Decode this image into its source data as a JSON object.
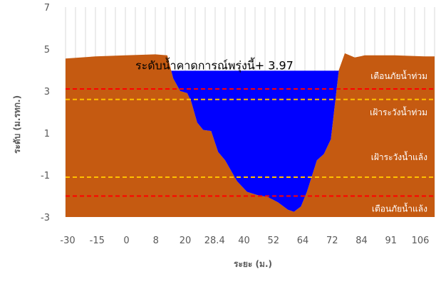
{
  "chart_data": {
    "type": "area",
    "xlabel": "ระยะ (ม.)",
    "ylabel": "ระดับ (ม.รทก.)",
    "ylim": [
      -3,
      7
    ],
    "yticks": [
      7,
      5,
      3,
      1,
      -1,
      -3
    ],
    "grid": "vertical",
    "xtick_labels": [
      "-30",
      "-15",
      "0",
      "8",
      "20",
      "28.4",
      "40",
      "52",
      "64",
      "72",
      "84",
      "91",
      "106"
    ],
    "ground_profile": [
      [
        0,
        4.55
      ],
      [
        3,
        4.65
      ],
      [
        6,
        4.7
      ],
      [
        9,
        4.75
      ],
      [
        10.2,
        4.7
      ],
      [
        10.8,
        3.6
      ],
      [
        11.5,
        3.0
      ],
      [
        12.2,
        2.9
      ],
      [
        12.6,
        2.5
      ],
      [
        13.2,
        1.5
      ],
      [
        13.8,
        1.15
      ],
      [
        14.6,
        1.1
      ],
      [
        15.3,
        0.1
      ],
      [
        16.0,
        -0.3
      ],
      [
        17.2,
        -1.3
      ],
      [
        18.2,
        -1.8
      ],
      [
        19.2,
        -1.95
      ],
      [
        20.3,
        -2.05
      ],
      [
        21.3,
        -2.3
      ],
      [
        22.3,
        -2.65
      ],
      [
        22.9,
        -2.75
      ],
      [
        23.6,
        -2.5
      ],
      [
        24.2,
        -1.8
      ],
      [
        25.2,
        -0.3
      ],
      [
        25.9,
        0.0
      ],
      [
        26.6,
        0.7
      ],
      [
        27.4,
        4.0
      ],
      [
        28.0,
        4.8
      ],
      [
        29.0,
        4.6
      ],
      [
        30.0,
        4.7
      ],
      [
        33.0,
        4.7
      ],
      [
        36.0,
        4.65
      ],
      [
        37.0,
        4.65
      ]
    ],
    "water_level": 3.97,
    "forecast_label": "ระดับน้ำคาดการณ์พรุ่งนี้+ 3.97",
    "thresholds": [
      {
        "label": "เตือนภัยน้ำท่วม",
        "y": 3.1,
        "color": "#ff0000"
      },
      {
        "label": "เฝ้าระวังน้ำท่วม",
        "y": 2.6,
        "color": "#ffc000"
      },
      {
        "label": "เฝ้าระวังน้ำแล้ง",
        "y": -1.1,
        "color": "#ffc000"
      },
      {
        "label": "เตือนภัยน้ำแล้ง",
        "y": -2.0,
        "color": "#ff0000"
      }
    ],
    "colors": {
      "ground": "#c55a11",
      "water": "#0000ff",
      "grid": "#d9d9d9",
      "text": "#595959"
    }
  }
}
